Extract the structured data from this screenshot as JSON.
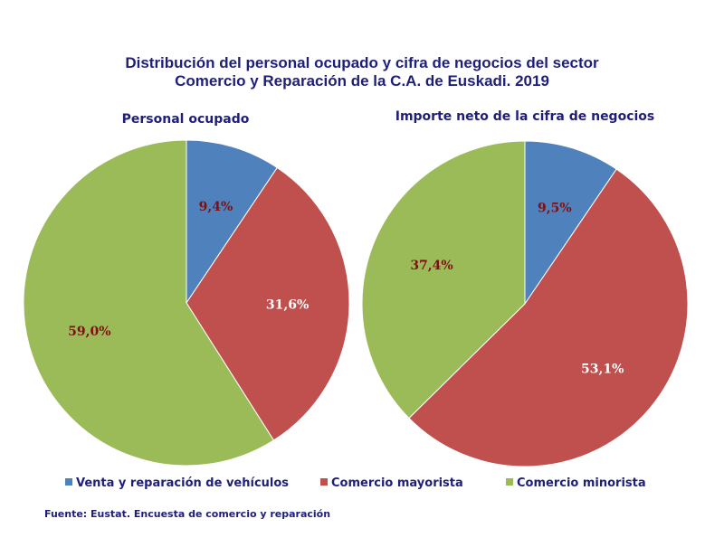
{
  "chart_data": [
    {
      "type": "pie",
      "title": "Personal ocupado",
      "categories": [
        "Venta y reparación de vehículos",
        "Comercio mayorista",
        "Comercio minorista"
      ],
      "values": [
        9.4,
        31.6,
        59.0
      ],
      "labels": [
        "9,4%",
        "31,6%",
        "59,0%"
      ],
      "colors": [
        "#4f81bd",
        "#c0504d",
        "#9bbb59"
      ],
      "label_colors": [
        "#7f1010",
        "#ffffff",
        "#7f1010"
      ]
    },
    {
      "type": "pie",
      "title": "Importe neto de la cifra de negocios",
      "categories": [
        "Venta y reparación de vehículos",
        "Comercio mayorista",
        "Comercio minorista"
      ],
      "values": [
        9.5,
        53.1,
        37.4
      ],
      "labels": [
        "9,5%",
        "53,1%",
        "37,4%"
      ],
      "colors": [
        "#4f81bd",
        "#c0504d",
        "#9bbb59"
      ],
      "label_colors": [
        "#7f1010",
        "#ffffff",
        "#7f1010"
      ]
    }
  ],
  "title_line1": "Distribución del personal ocupado y cifra de negocios del sector",
  "title_line2": "Comercio y Reparación de la C.A. de Euskadi. 2019",
  "legend": [
    {
      "label": "Venta y reparación de vehículos",
      "color": "#4f81bd"
    },
    {
      "label": "Comercio mayorista",
      "color": "#c0504d"
    },
    {
      "label": "Comercio minorista",
      "color": "#9bbb59"
    }
  ],
  "source": "Fuente: Eustat. Encuesta de comercio y reparación"
}
